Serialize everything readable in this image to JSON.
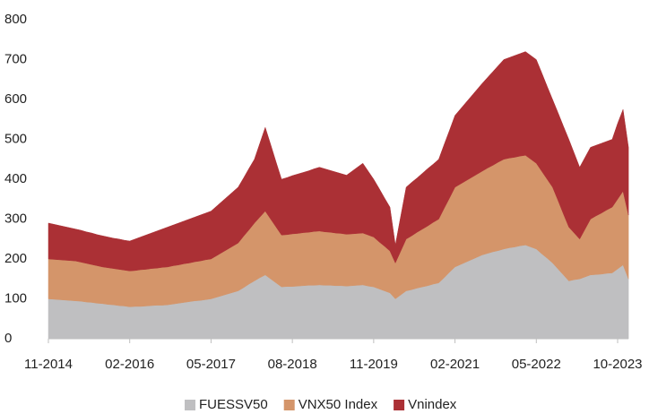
{
  "chart_data": {
    "type": "stacked-area",
    "categories": [
      "11-2014",
      null,
      null,
      null,
      null,
      null,
      null,
      null,
      null,
      null,
      null,
      null,
      null,
      null,
      null,
      "02-2016",
      null,
      null,
      null,
      null,
      null,
      null,
      null,
      null,
      null,
      null,
      null,
      null,
      null,
      null,
      "05-2017",
      null,
      null,
      null,
      null,
      null,
      null,
      null,
      null,
      null,
      null,
      null,
      null,
      null,
      null,
      "08-2018",
      null,
      null,
      null,
      null,
      null,
      null,
      null,
      null,
      null,
      null,
      null,
      null,
      null,
      null,
      "11-2019",
      null,
      null,
      null,
      null,
      null,
      null,
      null,
      null,
      null,
      null,
      null,
      null,
      null,
      null,
      "02-2021",
      null,
      null,
      null,
      null,
      null,
      null,
      null,
      null,
      null,
      null,
      null,
      null,
      null,
      null,
      "05-2022",
      null,
      null,
      null,
      null,
      null,
      null,
      null,
      null,
      null,
      null,
      null,
      null,
      null,
      null,
      "10-2023",
      null,
      null
    ],
    "series": [
      {
        "name": "FUESSV50",
        "color": "#bfbfc1",
        "values": [
          100,
          99,
          98,
          97,
          96,
          95,
          94,
          92,
          91,
          89,
          88,
          86,
          85,
          83,
          82,
          80,
          81,
          81,
          82,
          83,
          84,
          84,
          85,
          87,
          89,
          91,
          93,
          95,
          96,
          98,
          100,
          104,
          108,
          112,
          116,
          120,
          128,
          137,
          145,
          153,
          160,
          150,
          140,
          130,
          131,
          131,
          132,
          133,
          134,
          134,
          135,
          134,
          134,
          133,
          133,
          132,
          133,
          134,
          135,
          132,
          130,
          125,
          120,
          115,
          100,
          110,
          120,
          123,
          127,
          130,
          133,
          137,
          140,
          153,
          167,
          180,
          186,
          192,
          198,
          204,
          210,
          214,
          218,
          221,
          225,
          228,
          230,
          233,
          235,
          230,
          225,
          213,
          202,
          190,
          175,
          160,
          145,
          148,
          150,
          155,
          160,
          161,
          162,
          164,
          165,
          175,
          185,
          150
        ]
      },
      {
        "name": "VNX50 Index",
        "color": "#d4956a",
        "values": [
          100,
          100,
          100,
          100,
          100,
          100,
          98,
          97,
          95,
          94,
          92,
          92,
          91,
          91,
          90,
          90,
          90,
          92,
          92,
          93,
          93,
          95,
          95,
          96,
          96,
          97,
          97,
          98,
          99,
          100,
          100,
          104,
          108,
          112,
          116,
          120,
          129,
          136,
          145,
          152,
          160,
          150,
          140,
          130,
          130,
          132,
          132,
          133,
          133,
          135,
          135,
          134,
          133,
          132,
          131,
          130,
          130,
          130,
          130,
          128,
          125,
          118,
          112,
          105,
          90,
          110,
          130,
          135,
          140,
          145,
          150,
          155,
          160,
          174,
          186,
          200,
          202,
          204,
          206,
          208,
          210,
          214,
          217,
          222,
          225,
          225,
          225,
          225,
          225,
          220,
          215,
          207,
          198,
          190,
          172,
          153,
          135,
          117,
          100,
          120,
          140,
          147,
          153,
          159,
          165,
          175,
          185,
          160
        ]
      },
      {
        "name": "Vnindex",
        "color": "#ab3035",
        "values": [
          90,
          88,
          86,
          84,
          82,
          80,
          80,
          79,
          79,
          78,
          78,
          77,
          76,
          76,
          75,
          75,
          79,
          82,
          86,
          89,
          93,
          96,
          100,
          102,
          105,
          107,
          110,
          112,
          115,
          117,
          120,
          124,
          128,
          132,
          136,
          140,
          146,
          154,
          160,
          185,
          210,
          187,
          163,
          140,
          143,
          146,
          149,
          151,
          154,
          157,
          160,
          158,
          155,
          153,
          150,
          148,
          157,
          166,
          175,
          160,
          145,
          134,
          121,
          110,
          45,
          88,
          130,
          134,
          136,
          140,
          144,
          146,
          150,
          160,
          170,
          180,
          188,
          196,
          204,
          212,
          220,
          227,
          235,
          242,
          250,
          252,
          255,
          257,
          260,
          260,
          260,
          247,
          233,
          220,
          220,
          220,
          220,
          200,
          180,
          180,
          180,
          177,
          175,
          172,
          170,
          190,
          205,
          170
        ]
      }
    ],
    "ylim": [
      0,
      800
    ],
    "yticks": [
      0,
      100,
      200,
      300,
      400,
      500,
      600,
      700,
      800
    ],
    "legend": "bottom"
  }
}
